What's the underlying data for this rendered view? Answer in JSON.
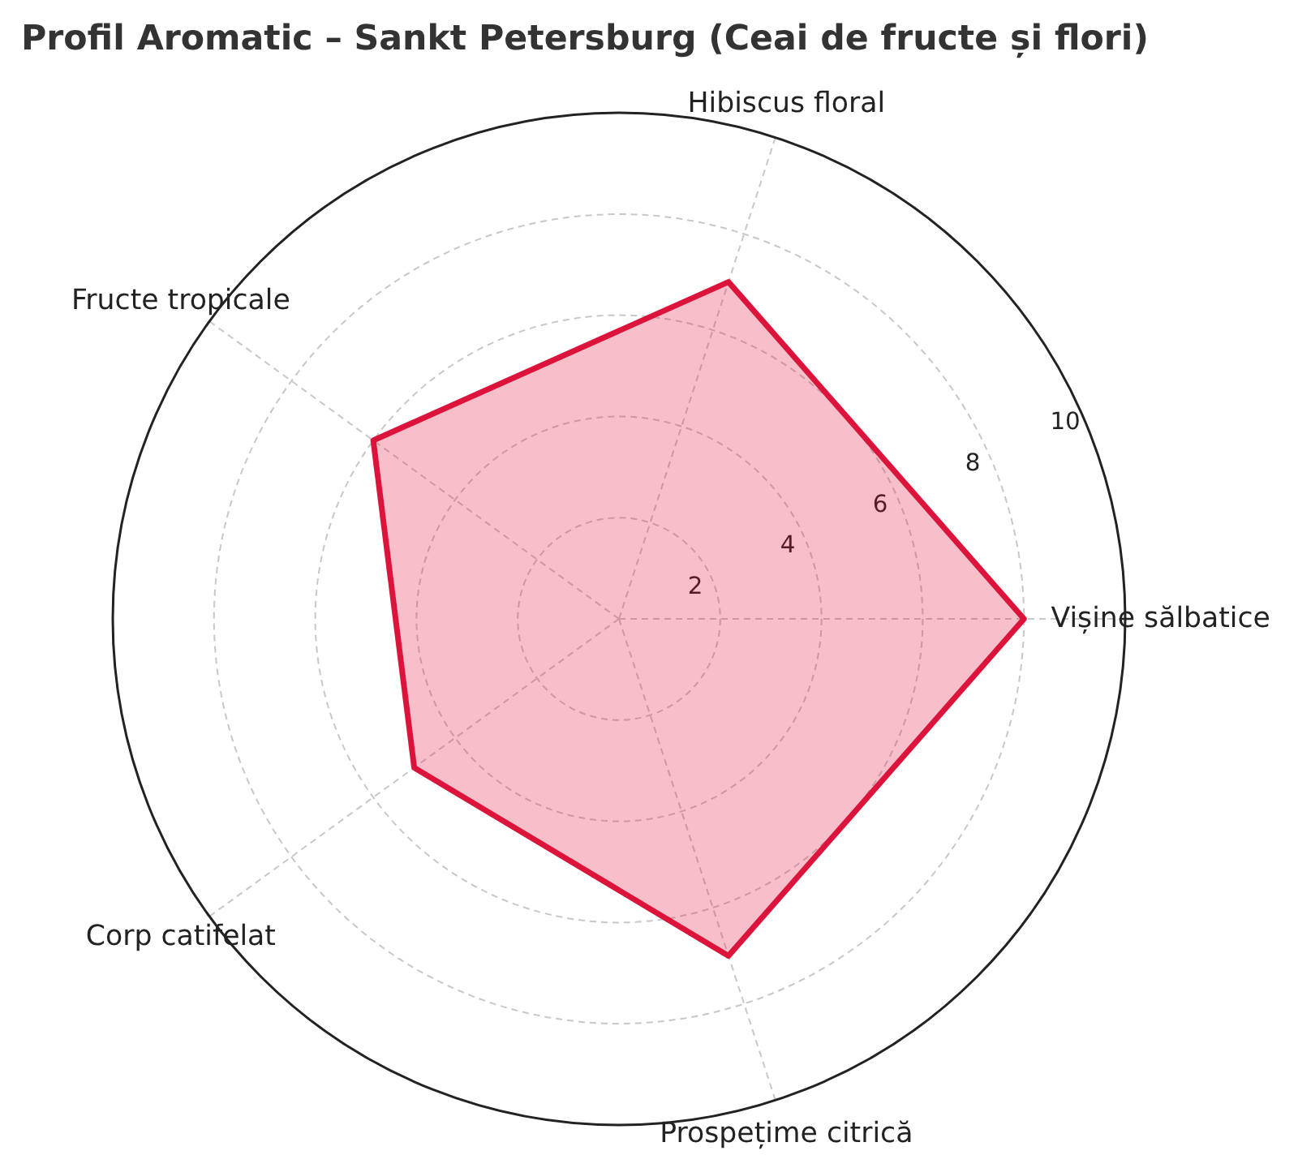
{
  "chart_data": {
    "type": "radar",
    "title": "Profil Aromatic – Sankt Petersburg (Ceai de fructe și flori)",
    "categories": [
      "Hibiscus floral",
      "Vișine sălbatice",
      "Prospețime citrică",
      "Corp catifelat",
      "Fructe tropicale"
    ],
    "series": [
      {
        "color": "#dc143c",
        "values": [
          7,
          8,
          7,
          5,
          6
        ]
      }
    ],
    "ylim": [
      0,
      10
    ],
    "yticks": [
      2,
      4,
      6,
      8,
      10
    ],
    "grid": true,
    "legend": false
  }
}
